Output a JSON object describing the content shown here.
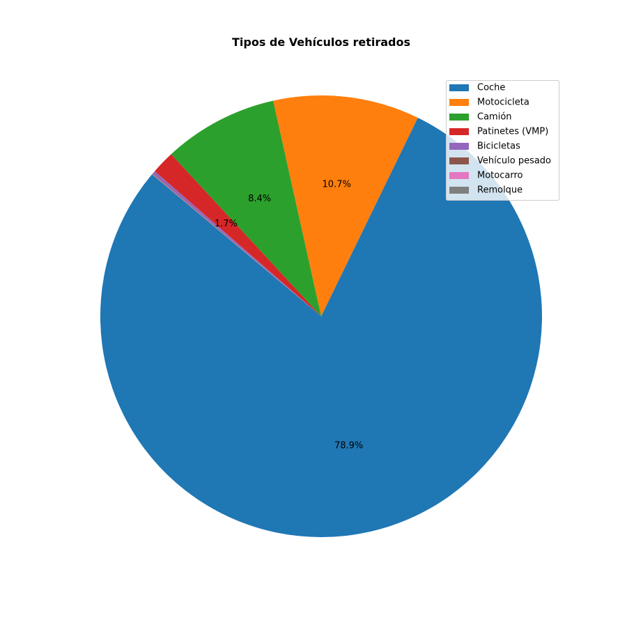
{
  "chart_data": {
    "type": "pie",
    "title": "Tipos de Vehículos retirados",
    "legend_position": "top-right",
    "start_angle_deg": 140,
    "direction": "counterclockwise",
    "label_format": "%1.1f%%",
    "slices": [
      {
        "label": "Coche",
        "value": 78.9,
        "color": "#1f77b4",
        "pct_label": "78.9%"
      },
      {
        "label": "Motocicleta",
        "value": 10.7,
        "color": "#ff7f0e",
        "pct_label": "10.7%"
      },
      {
        "label": "Camión",
        "value": 8.4,
        "color": "#2ca02c",
        "pct_label": "8.4%"
      },
      {
        "label": "Patinetes (VMP)",
        "value": 1.7,
        "color": "#d62728",
        "pct_label": "1.7%"
      },
      {
        "label": "Bicicletas",
        "value": 0.2,
        "color": "#9467bd",
        "pct_label": ""
      },
      {
        "label": "Vehículo pesado",
        "value": 0.05,
        "color": "#8c564b",
        "pct_label": ""
      },
      {
        "label": "Motocarro",
        "value": 0.03,
        "color": "#e377c2",
        "pct_label": ""
      },
      {
        "label": "Remolque",
        "value": 0.02,
        "color": "#7f7f7f",
        "pct_label": ""
      }
    ]
  }
}
